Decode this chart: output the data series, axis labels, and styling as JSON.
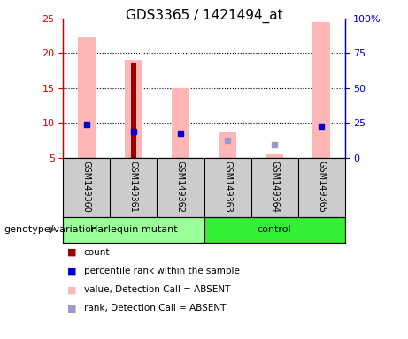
{
  "title": "GDS3365 / 1421494_at",
  "samples": [
    "GSM149360",
    "GSM149361",
    "GSM149362",
    "GSM149363",
    "GSM149364",
    "GSM149365"
  ],
  "ylim_left": [
    5,
    25
  ],
  "ylim_right": [
    0,
    100
  ],
  "yticks_left": [
    5,
    10,
    15,
    20,
    25
  ],
  "yticks_right": [
    0,
    25,
    50,
    75,
    100
  ],
  "ytick_labels_left": [
    "5",
    "10",
    "15",
    "20",
    "25"
  ],
  "ytick_labels_right": [
    "0",
    "25",
    "50",
    "75",
    "100%"
  ],
  "pink_bars": [
    22.3,
    19.0,
    15.0,
    8.8,
    5.6,
    24.5
  ],
  "red_bars": [
    null,
    18.7,
    null,
    null,
    null,
    null
  ],
  "blue_dots": [
    9.8,
    8.8,
    8.5,
    null,
    null,
    9.5
  ],
  "light_blue_dots": [
    null,
    null,
    null,
    7.5,
    6.8,
    null
  ],
  "pink_bar_bottom": 5,
  "left_yaxis_color": "#cc0000",
  "right_yaxis_color": "#0000cc",
  "pink_color": "#ffb6b6",
  "red_color": "#990000",
  "blue_color": "#0000cc",
  "light_blue_color": "#9999cc",
  "group_harlequin_color": "#99ff99",
  "group_control_color": "#33ee33",
  "xlabel_area_color": "#cccccc",
  "legend_items": [
    {
      "label": "count",
      "color": "#990000"
    },
    {
      "label": "percentile rank within the sample",
      "color": "#0000cc"
    },
    {
      "label": "value, Detection Call = ABSENT",
      "color": "#ffb6b6"
    },
    {
      "label": "rank, Detection Call = ABSENT",
      "color": "#9999cc"
    }
  ]
}
